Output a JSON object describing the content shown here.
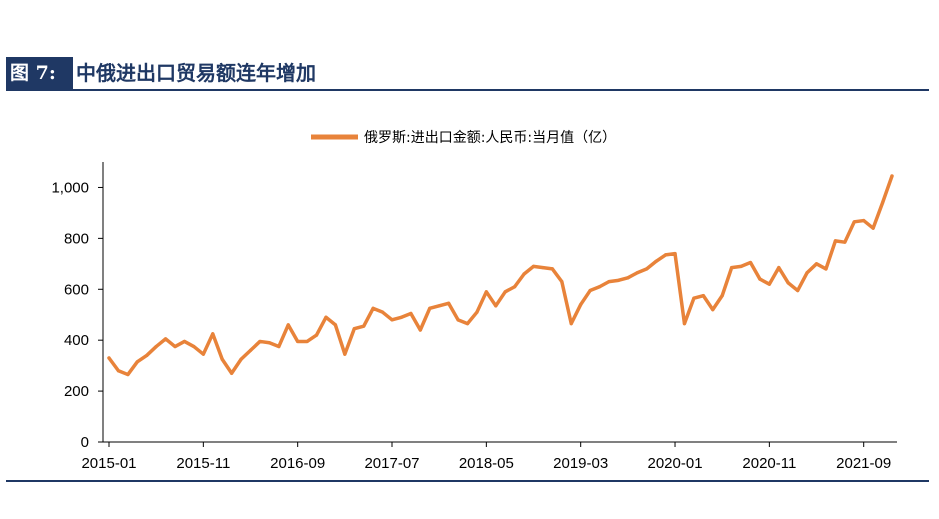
{
  "figure": {
    "number": "图 7:",
    "title": "中俄进出口贸易额连年增加"
  },
  "chart_data": {
    "type": "line",
    "title": "",
    "xlabel": "",
    "ylabel": "",
    "ylim": [
      0,
      1100
    ],
    "yticks": [
      0,
      200,
      400,
      600,
      800,
      1000
    ],
    "ytick_labels": [
      "0",
      "200",
      "400",
      "600",
      "800",
      "1,000"
    ],
    "xtick_labels": [
      "2015-01",
      "2015-11",
      "2016-09",
      "2017-07",
      "2018-05",
      "2019-03",
      "2020-01",
      "2020-11",
      "2021-09"
    ],
    "grid": false,
    "legend_position": "top-center",
    "color": "#e8833a",
    "series": [
      {
        "name": "俄罗斯:进出口金额:人民币:当月值（亿）",
        "x": [
          "2015-01",
          "2015-02",
          "2015-03",
          "2015-04",
          "2015-05",
          "2015-06",
          "2015-07",
          "2015-08",
          "2015-09",
          "2015-10",
          "2015-11",
          "2015-12",
          "2016-01",
          "2016-02",
          "2016-03",
          "2016-04",
          "2016-05",
          "2016-06",
          "2016-07",
          "2016-08",
          "2016-09",
          "2016-10",
          "2016-11",
          "2016-12",
          "2017-01",
          "2017-02",
          "2017-03",
          "2017-04",
          "2017-05",
          "2017-06",
          "2017-07",
          "2017-08",
          "2017-09",
          "2017-10",
          "2017-11",
          "2017-12",
          "2018-01",
          "2018-02",
          "2018-03",
          "2018-04",
          "2018-05",
          "2018-06",
          "2018-07",
          "2018-08",
          "2018-09",
          "2018-10",
          "2018-11",
          "2018-12",
          "2019-01",
          "2019-02",
          "2019-03",
          "2019-04",
          "2019-05",
          "2019-06",
          "2019-07",
          "2019-08",
          "2019-09",
          "2019-10",
          "2019-11",
          "2019-12",
          "2020-01",
          "2020-02",
          "2020-03",
          "2020-04",
          "2020-05",
          "2020-06",
          "2020-07",
          "2020-08",
          "2020-09",
          "2020-10",
          "2020-11",
          "2020-12",
          "2021-01",
          "2021-02",
          "2021-03",
          "2021-04",
          "2021-05",
          "2021-06",
          "2021-07",
          "2021-08",
          "2021-09",
          "2021-10",
          "2021-11",
          "2021-12"
        ],
        "values": [
          330,
          280,
          265,
          315,
          340,
          375,
          405,
          375,
          395,
          375,
          345,
          425,
          325,
          270,
          325,
          360,
          395,
          390,
          375,
          460,
          395,
          395,
          420,
          490,
          460,
          345,
          445,
          455,
          525,
          510,
          480,
          490,
          505,
          440,
          525,
          535,
          545,
          480,
          465,
          510,
          590,
          535,
          590,
          610,
          660,
          690,
          685,
          680,
          630,
          465,
          540,
          595,
          610,
          630,
          635,
          645,
          665,
          680,
          710,
          735,
          740,
          465,
          565,
          575,
          520,
          575,
          685,
          690,
          705,
          640,
          620,
          685,
          625,
          595,
          665,
          700,
          680,
          790,
          785,
          865,
          870,
          840,
          940,
          1045
        ]
      }
    ]
  }
}
